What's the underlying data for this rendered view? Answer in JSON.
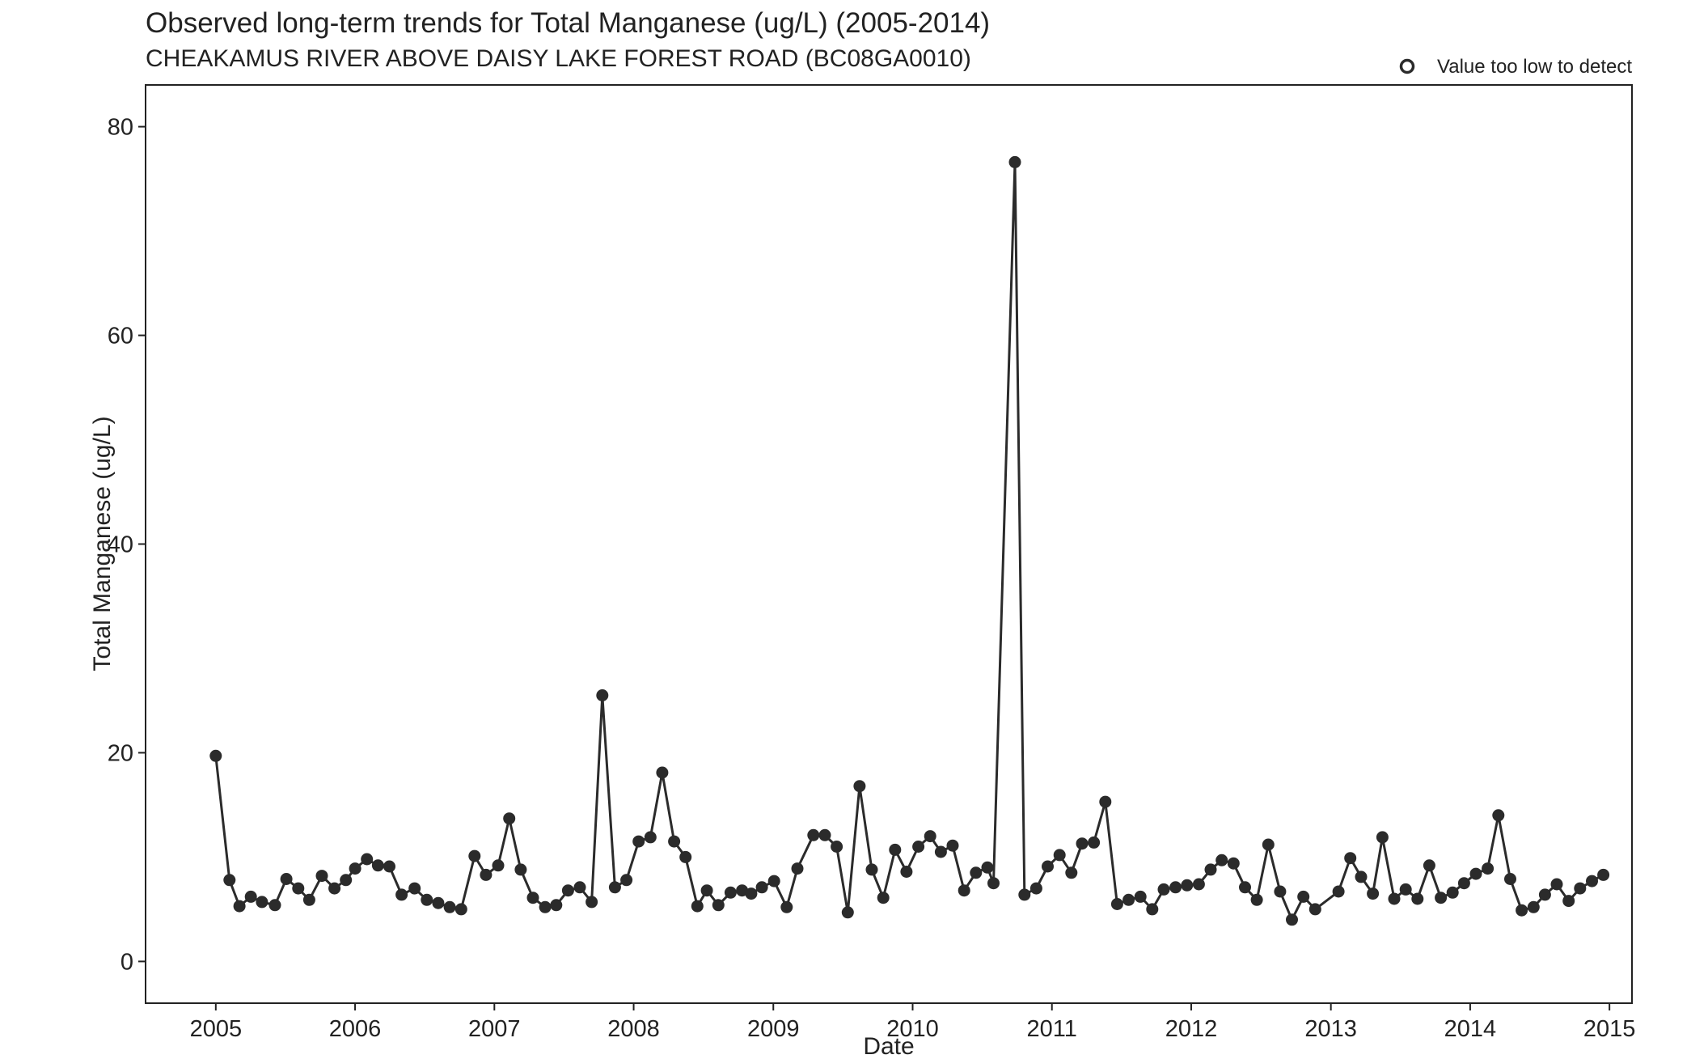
{
  "chart_data": {
    "type": "line",
    "title": "Observed long-term trends for Total Manganese (ug/L) (2005-2014)",
    "subtitle": "CHEAKAMUS RIVER ABOVE DAISY LAKE FOREST ROAD (BC08GA0010)",
    "xlabel": "Date",
    "ylabel": "Total Manganese (ug/L)",
    "xlim": [
      "2004-07-01",
      "2015-03-01"
    ],
    "ylim": [
      -4,
      84
    ],
    "x_ticks": [
      "2005",
      "2006",
      "2007",
      "2008",
      "2009",
      "2010",
      "2011",
      "2012",
      "2013",
      "2014",
      "2015"
    ],
    "y_ticks": [
      0,
      20,
      40,
      60,
      80
    ],
    "grid": false,
    "legend": {
      "position": "top-right",
      "entries": [
        {
          "label": "Value too low to detect",
          "marker": "open-circle"
        }
      ]
    },
    "colors": {
      "series": "#2b2b2b",
      "axis": "#222222"
    },
    "series": [
      {
        "points": [
          [
            "2005-01-01",
            19.7
          ],
          [
            "2005-02-06",
            7.8
          ],
          [
            "2005-03-04",
            5.3
          ],
          [
            "2005-04-03",
            6.2
          ],
          [
            "2005-05-02",
            5.7
          ],
          [
            "2005-06-05",
            5.4
          ],
          [
            "2005-07-05",
            7.9
          ],
          [
            "2005-08-05",
            7.0
          ],
          [
            "2005-09-03",
            5.9
          ],
          [
            "2005-10-06",
            8.2
          ],
          [
            "2005-11-08",
            7.0
          ],
          [
            "2005-12-08",
            7.8
          ],
          [
            "2006-01-01",
            8.9
          ],
          [
            "2006-02-01",
            9.8
          ],
          [
            "2006-03-02",
            9.2
          ],
          [
            "2006-04-01",
            9.1
          ],
          [
            "2006-05-03",
            6.4
          ],
          [
            "2006-06-06",
            7.0
          ],
          [
            "2006-07-08",
            5.9
          ],
          [
            "2006-08-07",
            5.6
          ],
          [
            "2006-09-06",
            5.2
          ],
          [
            "2006-10-06",
            5.0
          ],
          [
            "2006-11-10",
            10.1
          ],
          [
            "2006-12-10",
            8.3
          ],
          [
            "2007-01-11",
            9.2
          ],
          [
            "2007-02-09",
            13.7
          ],
          [
            "2007-03-11",
            8.8
          ],
          [
            "2007-04-12",
            6.1
          ],
          [
            "2007-05-14",
            5.2
          ],
          [
            "2007-06-12",
            5.4
          ],
          [
            "2007-07-13",
            6.8
          ],
          [
            "2007-08-13",
            7.1
          ],
          [
            "2007-09-13",
            5.7
          ],
          [
            "2007-10-11",
            25.5
          ],
          [
            "2007-11-13",
            7.1
          ],
          [
            "2007-12-13",
            7.8
          ],
          [
            "2008-01-14",
            11.5
          ],
          [
            "2008-02-14",
            11.9
          ],
          [
            "2008-03-16",
            18.1
          ],
          [
            "2008-04-16",
            11.5
          ],
          [
            "2008-05-16",
            10.0
          ],
          [
            "2008-06-16",
            5.3
          ],
          [
            "2008-07-11",
            6.8
          ],
          [
            "2008-08-10",
            5.4
          ],
          [
            "2008-09-11",
            6.6
          ],
          [
            "2008-10-11",
            6.8
          ],
          [
            "2008-11-04",
            6.5
          ],
          [
            "2008-12-02",
            7.1
          ],
          [
            "2009-01-03",
            7.7
          ],
          [
            "2009-02-05",
            5.2
          ],
          [
            "2009-03-05",
            8.9
          ],
          [
            "2009-04-16",
            12.1
          ],
          [
            "2009-05-16",
            12.1
          ],
          [
            "2009-06-16",
            11.0
          ],
          [
            "2009-07-15",
            4.7
          ],
          [
            "2009-08-15",
            16.8
          ],
          [
            "2009-09-16",
            8.8
          ],
          [
            "2009-10-16",
            6.1
          ],
          [
            "2009-11-16",
            10.7
          ],
          [
            "2009-12-16",
            8.6
          ],
          [
            "2010-01-16",
            11.0
          ],
          [
            "2010-02-16",
            12.0
          ],
          [
            "2010-03-16",
            10.5
          ],
          [
            "2010-04-16",
            11.1
          ],
          [
            "2010-05-16",
            6.8
          ],
          [
            "2010-06-16",
            8.5
          ],
          [
            "2010-07-16",
            9.0
          ],
          [
            "2010-08-01",
            7.5
          ],
          [
            "2010-09-26",
            76.6
          ],
          [
            "2010-10-21",
            6.4
          ],
          [
            "2010-11-21",
            7.0
          ],
          [
            "2010-12-21",
            9.1
          ],
          [
            "2011-01-21",
            10.2
          ],
          [
            "2011-02-21",
            8.5
          ],
          [
            "2011-03-21",
            11.3
          ],
          [
            "2011-04-21",
            11.4
          ],
          [
            "2011-05-21",
            15.3
          ],
          [
            "2011-06-21",
            5.5
          ],
          [
            "2011-07-21",
            5.9
          ],
          [
            "2011-08-21",
            6.2
          ],
          [
            "2011-09-21",
            5.0
          ],
          [
            "2011-10-21",
            6.9
          ],
          [
            "2011-11-21",
            7.1
          ],
          [
            "2011-12-21",
            7.3
          ],
          [
            "2012-01-21",
            7.4
          ],
          [
            "2012-02-21",
            8.8
          ],
          [
            "2012-03-21",
            9.7
          ],
          [
            "2012-04-21",
            9.4
          ],
          [
            "2012-05-21",
            7.1
          ],
          [
            "2012-06-21",
            5.9
          ],
          [
            "2012-07-21",
            11.2
          ],
          [
            "2012-08-21",
            6.7
          ],
          [
            "2012-09-21",
            4.0
          ],
          [
            "2012-10-21",
            6.2
          ],
          [
            "2012-11-21",
            5.0
          ],
          [
            "2013-01-21",
            6.7
          ],
          [
            "2013-02-21",
            9.9
          ],
          [
            "2013-03-21",
            8.1
          ],
          [
            "2013-04-21",
            6.5
          ],
          [
            "2013-05-16",
            11.9
          ],
          [
            "2013-06-16",
            6.0
          ],
          [
            "2013-07-16",
            6.9
          ],
          [
            "2013-08-16",
            6.0
          ],
          [
            "2013-09-16",
            9.2
          ],
          [
            "2013-10-16",
            6.1
          ],
          [
            "2013-11-16",
            6.6
          ],
          [
            "2013-12-16",
            7.5
          ],
          [
            "2014-01-16",
            8.4
          ],
          [
            "2014-02-16",
            8.9
          ],
          [
            "2014-03-16",
            14.0
          ],
          [
            "2014-04-16",
            7.9
          ],
          [
            "2014-05-16",
            4.9
          ],
          [
            "2014-06-16",
            5.2
          ],
          [
            "2014-07-16",
            6.4
          ],
          [
            "2014-08-16",
            7.4
          ],
          [
            "2014-09-16",
            5.8
          ],
          [
            "2014-10-16",
            7.0
          ],
          [
            "2014-11-16",
            7.7
          ],
          [
            "2014-12-16",
            8.3
          ]
        ]
      }
    ]
  }
}
